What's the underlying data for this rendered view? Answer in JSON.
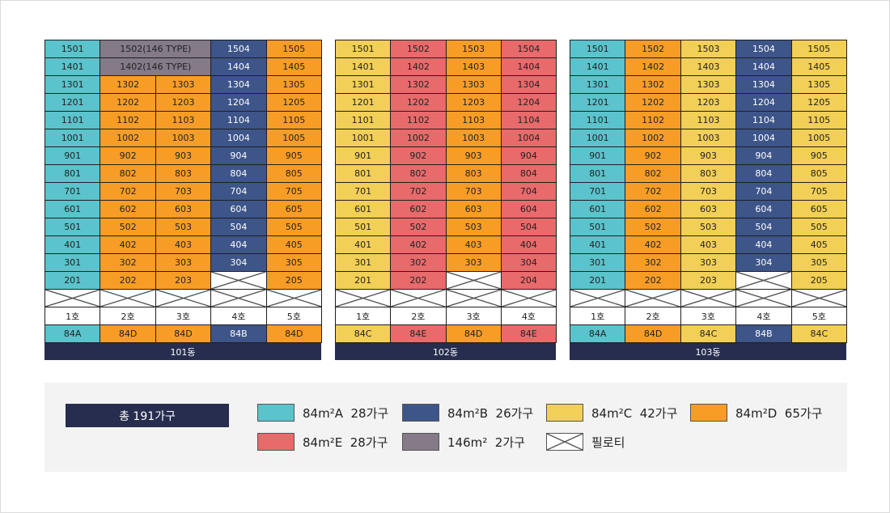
{
  "colors": {
    "A": "#5bc3cc",
    "B": "#3d5589",
    "C": "#f2cf56",
    "D": "#f79d26",
    "E": "#e86a6b",
    "P": "#847a88",
    "dark": "#262d4e"
  },
  "buildings": [
    {
      "name": "101동",
      "rows": [
        [
          {
            "t": "1501",
            "c": "A"
          },
          {
            "t": "1502(146 TYPE)",
            "c": "P",
            "span": 2
          },
          {
            "t": "1504",
            "c": "B"
          },
          {
            "t": "1505",
            "c": "D"
          }
        ],
        [
          {
            "t": "1401",
            "c": "A"
          },
          {
            "t": "1402(146 TYPE)",
            "c": "P",
            "span": 2
          },
          {
            "t": "1404",
            "c": "B"
          },
          {
            "t": "1405",
            "c": "D"
          }
        ],
        [
          {
            "t": "1301",
            "c": "A"
          },
          {
            "t": "1302",
            "c": "D"
          },
          {
            "t": "1303",
            "c": "D"
          },
          {
            "t": "1304",
            "c": "B"
          },
          {
            "t": "1305",
            "c": "D"
          }
        ],
        [
          {
            "t": "1201",
            "c": "A"
          },
          {
            "t": "1202",
            "c": "D"
          },
          {
            "t": "1203",
            "c": "D"
          },
          {
            "t": "1204",
            "c": "B"
          },
          {
            "t": "1205",
            "c": "D"
          }
        ],
        [
          {
            "t": "1101",
            "c": "A"
          },
          {
            "t": "1102",
            "c": "D"
          },
          {
            "t": "1103",
            "c": "D"
          },
          {
            "t": "1104",
            "c": "B"
          },
          {
            "t": "1105",
            "c": "D"
          }
        ],
        [
          {
            "t": "1001",
            "c": "A"
          },
          {
            "t": "1002",
            "c": "D"
          },
          {
            "t": "1003",
            "c": "D"
          },
          {
            "t": "1004",
            "c": "B"
          },
          {
            "t": "1005",
            "c": "D"
          }
        ],
        [
          {
            "t": "901",
            "c": "A"
          },
          {
            "t": "902",
            "c": "D"
          },
          {
            "t": "903",
            "c": "D"
          },
          {
            "t": "904",
            "c": "B"
          },
          {
            "t": "905",
            "c": "D"
          }
        ],
        [
          {
            "t": "801",
            "c": "A"
          },
          {
            "t": "802",
            "c": "D"
          },
          {
            "t": "803",
            "c": "D"
          },
          {
            "t": "804",
            "c": "B"
          },
          {
            "t": "805",
            "c": "D"
          }
        ],
        [
          {
            "t": "701",
            "c": "A"
          },
          {
            "t": "702",
            "c": "D"
          },
          {
            "t": "703",
            "c": "D"
          },
          {
            "t": "704",
            "c": "B"
          },
          {
            "t": "705",
            "c": "D"
          }
        ],
        [
          {
            "t": "601",
            "c": "A"
          },
          {
            "t": "602",
            "c": "D"
          },
          {
            "t": "603",
            "c": "D"
          },
          {
            "t": "604",
            "c": "B"
          },
          {
            "t": "605",
            "c": "D"
          }
        ],
        [
          {
            "t": "501",
            "c": "A"
          },
          {
            "t": "502",
            "c": "D"
          },
          {
            "t": "503",
            "c": "D"
          },
          {
            "t": "504",
            "c": "B"
          },
          {
            "t": "505",
            "c": "D"
          }
        ],
        [
          {
            "t": "401",
            "c": "A"
          },
          {
            "t": "402",
            "c": "D"
          },
          {
            "t": "403",
            "c": "D"
          },
          {
            "t": "404",
            "c": "B"
          },
          {
            "t": "405",
            "c": "D"
          }
        ],
        [
          {
            "t": "301",
            "c": "A"
          },
          {
            "t": "302",
            "c": "D"
          },
          {
            "t": "303",
            "c": "D"
          },
          {
            "t": "304",
            "c": "B"
          },
          {
            "t": "305",
            "c": "D"
          }
        ],
        [
          {
            "t": "201",
            "c": "A"
          },
          {
            "t": "202",
            "c": "D"
          },
          {
            "t": "203",
            "c": "D"
          },
          {
            "t": "",
            "c": "X"
          },
          {
            "t": "205",
            "c": "D"
          }
        ],
        [
          {
            "t": "",
            "c": "X"
          },
          {
            "t": "",
            "c": "X"
          },
          {
            "t": "",
            "c": "X"
          },
          {
            "t": "",
            "c": "X"
          },
          {
            "t": "",
            "c": "X"
          }
        ]
      ],
      "ho": [
        "1호",
        "2호",
        "3호",
        "4호",
        "5호"
      ],
      "types": [
        {
          "t": "84A",
          "c": "A"
        },
        {
          "t": "84D",
          "c": "D"
        },
        {
          "t": "84D",
          "c": "D"
        },
        {
          "t": "84B",
          "c": "B"
        },
        {
          "t": "84D",
          "c": "D"
        }
      ]
    },
    {
      "name": "102동",
      "rows": [
        [
          {
            "t": "1501",
            "c": "C"
          },
          {
            "t": "1502",
            "c": "E"
          },
          {
            "t": "1503",
            "c": "D"
          },
          {
            "t": "1504",
            "c": "E"
          }
        ],
        [
          {
            "t": "1401",
            "c": "C"
          },
          {
            "t": "1402",
            "c": "E"
          },
          {
            "t": "1403",
            "c": "D"
          },
          {
            "t": "1404",
            "c": "E"
          }
        ],
        [
          {
            "t": "1301",
            "c": "C"
          },
          {
            "t": "1302",
            "c": "E"
          },
          {
            "t": "1303",
            "c": "D"
          },
          {
            "t": "1304",
            "c": "E"
          }
        ],
        [
          {
            "t": "1201",
            "c": "C"
          },
          {
            "t": "1202",
            "c": "E"
          },
          {
            "t": "1203",
            "c": "D"
          },
          {
            "t": "1204",
            "c": "E"
          }
        ],
        [
          {
            "t": "1101",
            "c": "C"
          },
          {
            "t": "1102",
            "c": "E"
          },
          {
            "t": "1103",
            "c": "D"
          },
          {
            "t": "1104",
            "c": "E"
          }
        ],
        [
          {
            "t": "1001",
            "c": "C"
          },
          {
            "t": "1002",
            "c": "E"
          },
          {
            "t": "1003",
            "c": "D"
          },
          {
            "t": "1004",
            "c": "E"
          }
        ],
        [
          {
            "t": "901",
            "c": "C"
          },
          {
            "t": "902",
            "c": "E"
          },
          {
            "t": "903",
            "c": "D"
          },
          {
            "t": "904",
            "c": "E"
          }
        ],
        [
          {
            "t": "801",
            "c": "C"
          },
          {
            "t": "802",
            "c": "E"
          },
          {
            "t": "803",
            "c": "D"
          },
          {
            "t": "804",
            "c": "E"
          }
        ],
        [
          {
            "t": "701",
            "c": "C"
          },
          {
            "t": "702",
            "c": "E"
          },
          {
            "t": "703",
            "c": "D"
          },
          {
            "t": "704",
            "c": "E"
          }
        ],
        [
          {
            "t": "601",
            "c": "C"
          },
          {
            "t": "602",
            "c": "E"
          },
          {
            "t": "603",
            "c": "D"
          },
          {
            "t": "604",
            "c": "E"
          }
        ],
        [
          {
            "t": "501",
            "c": "C"
          },
          {
            "t": "502",
            "c": "E"
          },
          {
            "t": "503",
            "c": "D"
          },
          {
            "t": "504",
            "c": "E"
          }
        ],
        [
          {
            "t": "401",
            "c": "C"
          },
          {
            "t": "402",
            "c": "E"
          },
          {
            "t": "403",
            "c": "D"
          },
          {
            "t": "404",
            "c": "E"
          }
        ],
        [
          {
            "t": "301",
            "c": "C"
          },
          {
            "t": "302",
            "c": "E"
          },
          {
            "t": "303",
            "c": "D"
          },
          {
            "t": "304",
            "c": "E"
          }
        ],
        [
          {
            "t": "201",
            "c": "C"
          },
          {
            "t": "202",
            "c": "E"
          },
          {
            "t": "",
            "c": "X"
          },
          {
            "t": "204",
            "c": "E"
          }
        ],
        [
          {
            "t": "",
            "c": "X"
          },
          {
            "t": "",
            "c": "X"
          },
          {
            "t": "",
            "c": "X"
          },
          {
            "t": "",
            "c": "X"
          }
        ]
      ],
      "ho": [
        "1호",
        "2호",
        "3호",
        "4호"
      ],
      "types": [
        {
          "t": "84C",
          "c": "C"
        },
        {
          "t": "84E",
          "c": "E"
        },
        {
          "t": "84D",
          "c": "D"
        },
        {
          "t": "84E",
          "c": "E"
        }
      ]
    },
    {
      "name": "103동",
      "rows": [
        [
          {
            "t": "1501",
            "c": "A"
          },
          {
            "t": "1502",
            "c": "D"
          },
          {
            "t": "1503",
            "c": "C"
          },
          {
            "t": "1504",
            "c": "B"
          },
          {
            "t": "1505",
            "c": "C"
          }
        ],
        [
          {
            "t": "1401",
            "c": "A"
          },
          {
            "t": "1402",
            "c": "D"
          },
          {
            "t": "1403",
            "c": "C"
          },
          {
            "t": "1404",
            "c": "B"
          },
          {
            "t": "1405",
            "c": "C"
          }
        ],
        [
          {
            "t": "1301",
            "c": "A"
          },
          {
            "t": "1302",
            "c": "D"
          },
          {
            "t": "1303",
            "c": "C"
          },
          {
            "t": "1304",
            "c": "B"
          },
          {
            "t": "1305",
            "c": "C"
          }
        ],
        [
          {
            "t": "1201",
            "c": "A"
          },
          {
            "t": "1202",
            "c": "D"
          },
          {
            "t": "1203",
            "c": "C"
          },
          {
            "t": "1204",
            "c": "B"
          },
          {
            "t": "1205",
            "c": "C"
          }
        ],
        [
          {
            "t": "1101",
            "c": "A"
          },
          {
            "t": "1102",
            "c": "D"
          },
          {
            "t": "1103",
            "c": "C"
          },
          {
            "t": "1104",
            "c": "B"
          },
          {
            "t": "1105",
            "c": "C"
          }
        ],
        [
          {
            "t": "1001",
            "c": "A"
          },
          {
            "t": "1002",
            "c": "D"
          },
          {
            "t": "1003",
            "c": "C"
          },
          {
            "t": "1004",
            "c": "B"
          },
          {
            "t": "1005",
            "c": "C"
          }
        ],
        [
          {
            "t": "901",
            "c": "A"
          },
          {
            "t": "902",
            "c": "D"
          },
          {
            "t": "903",
            "c": "C"
          },
          {
            "t": "904",
            "c": "B"
          },
          {
            "t": "905",
            "c": "C"
          }
        ],
        [
          {
            "t": "801",
            "c": "A"
          },
          {
            "t": "802",
            "c": "D"
          },
          {
            "t": "803",
            "c": "C"
          },
          {
            "t": "804",
            "c": "B"
          },
          {
            "t": "805",
            "c": "C"
          }
        ],
        [
          {
            "t": "701",
            "c": "A"
          },
          {
            "t": "702",
            "c": "D"
          },
          {
            "t": "703",
            "c": "C"
          },
          {
            "t": "704",
            "c": "B"
          },
          {
            "t": "705",
            "c": "C"
          }
        ],
        [
          {
            "t": "601",
            "c": "A"
          },
          {
            "t": "602",
            "c": "D"
          },
          {
            "t": "603",
            "c": "C"
          },
          {
            "t": "604",
            "c": "B"
          },
          {
            "t": "605",
            "c": "C"
          }
        ],
        [
          {
            "t": "501",
            "c": "A"
          },
          {
            "t": "502",
            "c": "D"
          },
          {
            "t": "503",
            "c": "C"
          },
          {
            "t": "504",
            "c": "B"
          },
          {
            "t": "505",
            "c": "C"
          }
        ],
        [
          {
            "t": "401",
            "c": "A"
          },
          {
            "t": "402",
            "c": "D"
          },
          {
            "t": "403",
            "c": "C"
          },
          {
            "t": "404",
            "c": "B"
          },
          {
            "t": "405",
            "c": "C"
          }
        ],
        [
          {
            "t": "301",
            "c": "A"
          },
          {
            "t": "302",
            "c": "D"
          },
          {
            "t": "303",
            "c": "C"
          },
          {
            "t": "304",
            "c": "B"
          },
          {
            "t": "305",
            "c": "C"
          }
        ],
        [
          {
            "t": "201",
            "c": "A"
          },
          {
            "t": "202",
            "c": "D"
          },
          {
            "t": "203",
            "c": "C"
          },
          {
            "t": "",
            "c": "X"
          },
          {
            "t": "205",
            "c": "C"
          }
        ],
        [
          {
            "t": "",
            "c": "X"
          },
          {
            "t": "",
            "c": "X"
          },
          {
            "t": "",
            "c": "X"
          },
          {
            "t": "",
            "c": "X"
          },
          {
            "t": "",
            "c": "X"
          }
        ]
      ],
      "ho": [
        "1호",
        "2호",
        "3호",
        "4호",
        "5호"
      ],
      "types": [
        {
          "t": "84A",
          "c": "A"
        },
        {
          "t": "84D",
          "c": "D"
        },
        {
          "t": "84C",
          "c": "C"
        },
        {
          "t": "84B",
          "c": "B"
        },
        {
          "t": "84C",
          "c": "C"
        }
      ]
    }
  ],
  "legend": {
    "total": "총 191가구",
    "items": [
      {
        "label": "84m²A  28가구",
        "c": "A"
      },
      {
        "label": "84m²B  26가구",
        "c": "B"
      },
      {
        "label": "84m²C  42가구",
        "c": "C"
      },
      {
        "label": "84m²D  65가구",
        "c": "D"
      },
      {
        "label": "84m²E  28가구",
        "c": "E"
      },
      {
        "label": "146m²  2가구",
        "c": "P"
      },
      {
        "label": "필로티",
        "c": "X"
      }
    ]
  }
}
